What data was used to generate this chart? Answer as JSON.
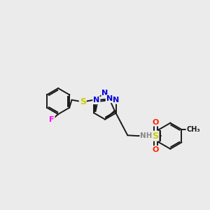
{
  "background_color": "#ebebeb",
  "bond_color": "#1a1a1a",
  "atom_colors": {
    "N": "#0000dd",
    "S": "#cccc00",
    "F": "#ff00ff",
    "O": "#ff2200",
    "NH": "#aaaaaa",
    "C": "#1a1a1a"
  },
  "figsize": [
    3.0,
    3.0
  ],
  "dpi": 100
}
